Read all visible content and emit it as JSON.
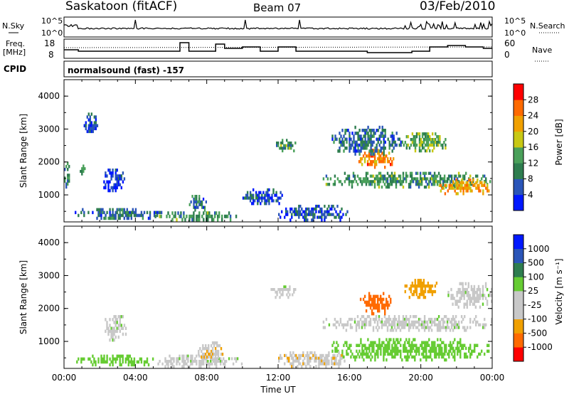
{
  "header": {
    "title": "Saskatoon (fitACF)",
    "beam": "Beam 07",
    "date": "03/Feb/2010"
  },
  "strips": {
    "nsky_label": "N.Sky",
    "nsearch_label": "N.Search",
    "exp_top": "10^5",
    "exp_bottom": "10^0",
    "freq_label": "Freq.",
    "freq_unit": "[MHz]",
    "freq_ticks": [
      "18",
      "8"
    ],
    "nave_label": "Nave",
    "nave_ticks": [
      "60",
      "0"
    ],
    "cpid_label": "CPID",
    "cpid_value": "normalsound (fast) -157"
  },
  "colors": {
    "power": [
      "#0018ff",
      "#2a55b8",
      "#2e7d4f",
      "#4aa05a",
      "#c8c814",
      "#f0a000",
      "#ff6a00",
      "#ff0000"
    ],
    "velocity": [
      "#ff0000",
      "#ff6a00",
      "#f0a000",
      "#c8c8c8",
      "#c8c8c8",
      "#66cc33",
      "#2e7d4f",
      "#2a55b8",
      "#0018ff"
    ],
    "ground_scatter": "#c0c0c0"
  },
  "chart_data": [
    {
      "type": "heatmap",
      "name": "power",
      "ylabel": "Slant Range [km]",
      "colorbar_label": "Power [dB]",
      "colorbar_ticks": [
        "28",
        "24",
        "20",
        "16",
        "12",
        "8",
        "4"
      ],
      "xlim": [
        0,
        24
      ],
      "ylim": [
        180,
        4500
      ],
      "y_ticks": [
        "4000",
        "3000",
        "2000",
        "1000"
      ],
      "blobs": [
        {
          "t0": 0.0,
          "t1": 0.4,
          "r0": 1200,
          "r1": 2000,
          "v": 12
        },
        {
          "t0": 0.8,
          "t1": 1.2,
          "r0": 1600,
          "r1": 2000,
          "v": 14
        },
        {
          "t0": 1.1,
          "t1": 1.9,
          "r0": 2800,
          "r1": 3500,
          "v": 8
        },
        {
          "t0": 2.2,
          "t1": 3.5,
          "r0": 1000,
          "r1": 1800,
          "v": 6
        },
        {
          "t0": 0.6,
          "t1": 5.5,
          "r0": 250,
          "r1": 600,
          "v": 10
        },
        {
          "t0": 5.0,
          "t1": 10.0,
          "r0": 200,
          "r1": 500,
          "v": 14
        },
        {
          "t0": 7.0,
          "t1": 8.0,
          "r0": 500,
          "r1": 1000,
          "v": 10
        },
        {
          "t0": 10.0,
          "t1": 12.5,
          "r0": 700,
          "r1": 1200,
          "v": 8
        },
        {
          "t0": 11.8,
          "t1": 13.0,
          "r0": 2300,
          "r1": 2700,
          "v": 14
        },
        {
          "t0": 14.5,
          "t1": 24.0,
          "r0": 1200,
          "r1": 1700,
          "v": 14
        },
        {
          "t0": 16.5,
          "t1": 18.5,
          "r0": 1800,
          "r1": 2400,
          "v": 26
        },
        {
          "t0": 15.0,
          "t1": 19.0,
          "r0": 2200,
          "r1": 3100,
          "v": 10
        },
        {
          "t0": 19.0,
          "t1": 21.5,
          "r0": 2300,
          "r1": 2900,
          "v": 16
        },
        {
          "t0": 21.0,
          "t1": 24.0,
          "r0": 1000,
          "r1": 1500,
          "v": 24
        },
        {
          "t0": 12.0,
          "t1": 16.0,
          "r0": 200,
          "r1": 700,
          "v": 8
        }
      ]
    },
    {
      "type": "heatmap",
      "name": "velocity",
      "ylabel": "Slant Range [km]",
      "xlabel": "Time UT",
      "colorbar_label": "Velocity [m s⁻¹]",
      "colorbar_ticks": [
        "1000",
        "500",
        "100",
        "25",
        "-25",
        "-100",
        "-500",
        "-1000"
      ],
      "xlim": [
        0,
        24
      ],
      "ylim": [
        180,
        4500
      ],
      "y_ticks": [
        "4000",
        "3000",
        "2000",
        "1000"
      ],
      "x_ticks": [
        "00:00",
        "04:00",
        "08:00",
        "12:00",
        "16:00",
        "20:00",
        "00:00"
      ],
      "blobs": [
        {
          "t0": 0.6,
          "t1": 5.5,
          "r0": 250,
          "r1": 600,
          "v": 60
        },
        {
          "t0": 2.2,
          "t1": 3.5,
          "r0": 1000,
          "r1": 1800,
          "v": 0
        },
        {
          "t0": 5.0,
          "t1": 10.0,
          "r0": 200,
          "r1": 600,
          "v": 0
        },
        {
          "t0": 7.5,
          "t1": 9.0,
          "r0": 400,
          "r1": 1000,
          "v": -80
        },
        {
          "t0": 11.5,
          "t1": 13.0,
          "r0": 2300,
          "r1": 2700,
          "v": 0
        },
        {
          "t0": 14.5,
          "t1": 24.0,
          "r0": 1300,
          "r1": 1800,
          "v": 0
        },
        {
          "t0": 16.5,
          "t1": 18.5,
          "r0": 1800,
          "r1": 2500,
          "v": -700
        },
        {
          "t0": 19.0,
          "t1": 21.0,
          "r0": 2300,
          "r1": 2900,
          "v": -300
        },
        {
          "t0": 21.5,
          "t1": 24.0,
          "r0": 2000,
          "r1": 2800,
          "v": 0
        },
        {
          "t0": 15.0,
          "t1": 24.0,
          "r0": 400,
          "r1": 1100,
          "v": 60
        },
        {
          "t0": 12.0,
          "t1": 16.0,
          "r0": 200,
          "r1": 700,
          "v": -80
        }
      ]
    }
  ]
}
